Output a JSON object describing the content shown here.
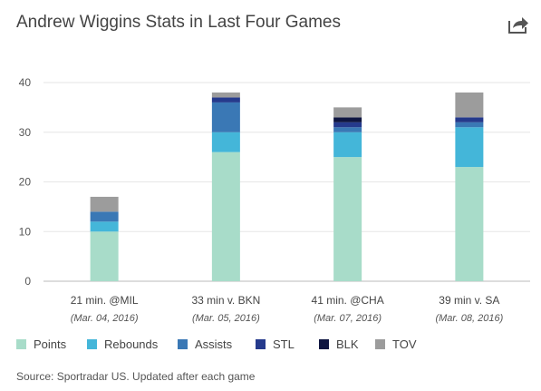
{
  "title": "Andrew Wiggins Stats in Last Four Games",
  "source": "Source: Sportradar US. Updated after each game",
  "share_icon": "share-icon",
  "chart_data": {
    "type": "bar",
    "stacked": true,
    "title": "Andrew Wiggins Stats in Last Four Games",
    "categories": [
      "21 min. @MIL",
      "33 min v. BKN",
      "41 min. @CHA",
      "39 min v. SA"
    ],
    "category_sublabels": [
      "(Mar. 04, 2016)",
      "(Mar. 05, 2016)",
      "(Mar. 07, 2016)",
      "(Mar. 08, 2016)"
    ],
    "ylim": [
      0,
      40
    ],
    "yticks": [
      0,
      10,
      20,
      30,
      40
    ],
    "grid": true,
    "legend_position": "bottom",
    "series": [
      {
        "name": "Points",
        "color": "#a8dcc9",
        "values": [
          10,
          26,
          25,
          23
        ]
      },
      {
        "name": "Rebounds",
        "color": "#44b6d9",
        "values": [
          2,
          4,
          5,
          8
        ]
      },
      {
        "name": "Assists",
        "color": "#3a78b5",
        "values": [
          2,
          6,
          1,
          1
        ]
      },
      {
        "name": "STL",
        "color": "#253a8c",
        "values": [
          0,
          1,
          1,
          1
        ]
      },
      {
        "name": "BLK",
        "color": "#0e1540",
        "values": [
          0,
          0,
          1,
          0
        ]
      },
      {
        "name": "TOV",
        "color": "#9c9c9c",
        "values": [
          3,
          1,
          2,
          5
        ]
      }
    ]
  }
}
